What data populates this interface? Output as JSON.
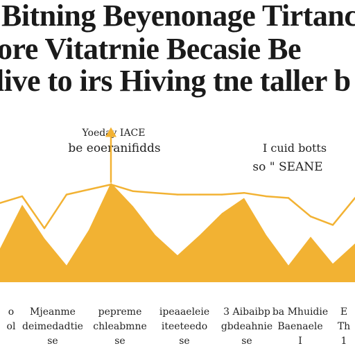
{
  "chart_data": {
    "type": "area",
    "title": [
      "Bitning Beyenonage Tirtanc",
      "ore Vitatrnie Becasie Be",
      "live to irs Hiving tne taller be"
    ],
    "annotations": [
      {
        "lines": [
          "Yoeday IACE",
          "be eoeranifidds"
        ],
        "marks": "arrow-up"
      },
      {
        "lines": [
          "I cuid botts",
          "so \" SEANE"
        ],
        "marks": "none"
      }
    ],
    "x": [
      0,
      1,
      2,
      3,
      4,
      5,
      6,
      7,
      8,
      9,
      10,
      11,
      12,
      13,
      14,
      15,
      16
    ],
    "series": [
      {
        "kind": "area",
        "color": "#f2b233",
        "values": [
          2.0,
          4.6,
          2.6,
          1.0,
          3.1,
          5.9,
          4.5,
          2.8,
          1.6,
          2.8,
          4.1,
          5.0,
          2.8,
          1.0,
          2.7,
          1.1,
          2.3
        ]
      },
      {
        "kind": "line",
        "color": "#f2b233",
        "values": [
          4.7,
          5.1,
          3.2,
          5.2,
          5.5,
          5.8,
          5.4,
          5.3,
          5.2,
          5.2,
          5.2,
          5.3,
          5.1,
          5.0,
          3.9,
          3.4,
          5.0
        ]
      }
    ],
    "peak_marker": {
      "x": 5,
      "value": 9.2,
      "color": "#f2b233"
    },
    "ylim": [
      0,
      10
    ],
    "categories": [
      [
        "o",
        "ol"
      ],
      [
        "Mjeanme",
        "deimedadtie",
        "se"
      ],
      [
        "pepreme",
        "chleabmne",
        "se"
      ],
      [
        "ipeaaeleie",
        "iteeteedo",
        "se"
      ],
      [
        "3 Aibaibp",
        "gbdeahnie",
        "se"
      ],
      [
        "ba Mhuidie",
        "Baenaele",
        "I"
      ],
      [
        "E",
        "Th",
        "1"
      ]
    ],
    "grid": false,
    "legend": "none"
  }
}
